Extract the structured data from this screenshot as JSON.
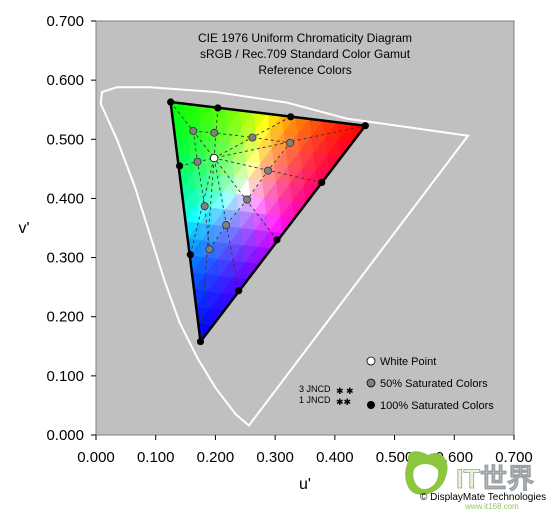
{
  "chart_data": {
    "type": "scatter",
    "title": [
      "CIE 1976 Uniform Chromaticity Diagram",
      "sRGB / Rec.709 Standard Color Gamut",
      "Reference Colors"
    ],
    "xlabel": "u'",
    "ylabel": "v'",
    "xlim": [
      0,
      0.7
    ],
    "ylim": [
      0,
      0.7
    ],
    "x_ticks": [
      "0.000",
      "0.100",
      "0.200",
      "0.300",
      "0.400",
      "0.500",
      "0.600",
      "0.700"
    ],
    "y_ticks": [
      "0.000",
      "0.100",
      "0.200",
      "0.300",
      "0.400",
      "0.500",
      "0.600",
      "0.700"
    ],
    "grid": false,
    "legend_position": "bottom-right",
    "colors": {
      "plot_bg": "#c0c0c0",
      "locus": "#ffffff",
      "red": "#ff0000",
      "green": "#00ff00",
      "blue": "#0000ff",
      "white_point": "#ffffff",
      "saturated_50": "#808080",
      "saturated_100": "#000000"
    },
    "spectral_locus": [
      [
        0.256,
        0.016
      ],
      [
        0.234,
        0.035
      ],
      [
        0.2,
        0.08
      ],
      [
        0.17,
        0.13
      ],
      [
        0.14,
        0.19
      ],
      [
        0.115,
        0.26
      ],
      [
        0.09,
        0.34
      ],
      [
        0.065,
        0.42
      ],
      [
        0.035,
        0.5
      ],
      [
        0.008,
        0.56
      ],
      [
        0.01,
        0.58
      ],
      [
        0.035,
        0.588
      ],
      [
        0.09,
        0.588
      ],
      [
        0.2,
        0.58
      ],
      [
        0.32,
        0.562
      ],
      [
        0.42,
        0.535
      ],
      [
        0.623,
        0.506
      ]
    ],
    "gamut_triangle": {
      "red": [
        0.451,
        0.523
      ],
      "green": [
        0.125,
        0.563
      ],
      "blue": [
        0.175,
        0.158
      ]
    },
    "series": [
      {
        "name": "White Point",
        "points": [
          [
            0.1978,
            0.4683
          ]
        ]
      },
      {
        "name": "50% Saturated Colors",
        "points": [
          [
            0.163,
            0.514
          ],
          [
            0.198,
            0.511
          ],
          [
            0.262,
            0.503
          ],
          [
            0.325,
            0.494
          ],
          [
            0.17,
            0.462
          ],
          [
            0.182,
            0.387
          ],
          [
            0.19,
            0.314
          ],
          [
            0.218,
            0.355
          ],
          [
            0.253,
            0.398
          ],
          [
            0.288,
            0.447
          ]
        ]
      },
      {
        "name": "100% Saturated Colors",
        "points": [
          [
            0.125,
            0.563
          ],
          [
            0.204,
            0.553
          ],
          [
            0.326,
            0.538
          ],
          [
            0.451,
            0.523
          ],
          [
            0.378,
            0.427
          ],
          [
            0.303,
            0.33
          ],
          [
            0.239,
            0.244
          ],
          [
            0.175,
            0.158
          ],
          [
            0.158,
            0.305
          ],
          [
            0.14,
            0.455
          ]
        ]
      }
    ],
    "annotations": {
      "jncd_3": "3 JNCD",
      "jncd_1": "1 JNCD",
      "credit": "© DisplayMate Technologies"
    }
  },
  "watermark": {
    "text": "IT世界",
    "url": "www.it168.com"
  }
}
